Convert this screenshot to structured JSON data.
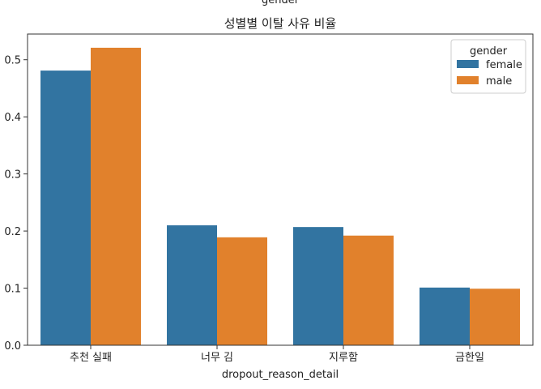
{
  "top_cut_label": "gender",
  "chart_data": {
    "type": "bar",
    "title": "성별별 이탈 사유 비율",
    "xlabel": "dropout_reason_detail",
    "ylabel": "",
    "categories": [
      "추천 실패",
      "너무 김",
      "지루함",
      "금한일"
    ],
    "series": [
      {
        "name": "female",
        "values": [
          0.481,
          0.21,
          0.207,
          0.101
        ]
      },
      {
        "name": "male",
        "values": [
          0.521,
          0.189,
          0.192,
          0.099
        ]
      }
    ],
    "ylim": [
      0,
      0.545
    ],
    "yticks": [
      "0.0",
      "0.1",
      "0.2",
      "0.3",
      "0.4",
      "0.5"
    ],
    "legend": {
      "title": "gender",
      "placement": "top-right"
    },
    "grid": false,
    "colors": [
      "#3274a1",
      "#e1812c"
    ]
  }
}
